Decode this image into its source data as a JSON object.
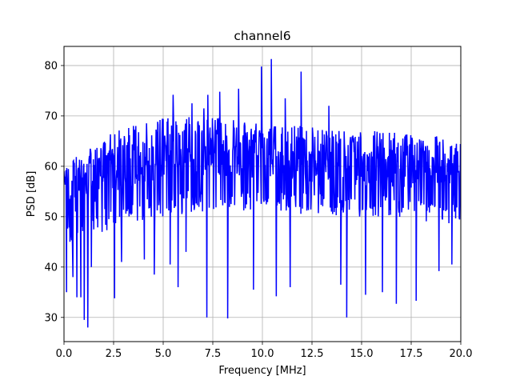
{
  "chart_data": {
    "type": "line",
    "title": "channel6",
    "xlabel": "Frequency [MHz]",
    "ylabel": "PSD [dB]",
    "xlim": [
      0,
      20
    ],
    "ylim": [
      25.2,
      83.8
    ],
    "xticks": [
      0,
      2.5,
      5,
      7.5,
      10,
      12.5,
      15,
      17.5,
      20
    ],
    "xtick_labels": [
      "0.0",
      "2.5",
      "5.0",
      "7.5",
      "10.0",
      "12.5",
      "15.0",
      "17.5",
      "20.0"
    ],
    "yticks": [
      30,
      40,
      50,
      60,
      70,
      80
    ],
    "ytick_labels": [
      "30",
      "40",
      "50",
      "60",
      "70",
      "80"
    ],
    "grid": true,
    "series": [
      {
        "color": "#0000ff",
        "points_per_x_step": 0.02,
        "envelope": {
          "x": [
            0,
            1,
            2,
            3,
            4,
            5,
            6,
            7,
            8,
            9,
            10,
            11,
            12,
            13,
            14,
            15,
            16,
            17,
            18,
            19,
            20
          ],
          "upper": [
            60,
            63,
            66,
            68,
            68.5,
            69.5,
            70,
            70,
            69.5,
            69,
            68.5,
            68,
            68,
            67.5,
            67,
            67,
            67,
            66.5,
            66,
            66,
            65
          ],
          "lower": [
            44,
            45,
            47,
            48,
            49,
            50,
            50.5,
            51,
            51,
            51,
            51,
            51,
            50.5,
            50.5,
            50,
            50,
            50,
            49.5,
            49,
            48.5,
            48
          ]
        },
        "peaks": [
          {
            "x": 0.13,
            "y": 35
          },
          {
            "x": 0.45,
            "y": 38
          },
          {
            "x": 0.65,
            "y": 34
          },
          {
            "x": 0.85,
            "y": 34
          },
          {
            "x": 1.02,
            "y": 29.5
          },
          {
            "x": 1.2,
            "y": 28
          },
          {
            "x": 1.38,
            "y": 40
          },
          {
            "x": 2.55,
            "y": 33.8
          },
          {
            "x": 2.9,
            "y": 41
          },
          {
            "x": 4.05,
            "y": 41.5
          },
          {
            "x": 4.55,
            "y": 38.5
          },
          {
            "x": 5.35,
            "y": 40.5
          },
          {
            "x": 5.75,
            "y": 36
          },
          {
            "x": 6.15,
            "y": 43
          },
          {
            "x": 7.2,
            "y": 30
          },
          {
            "x": 8.25,
            "y": 29.8
          },
          {
            "x": 9.55,
            "y": 35.5
          },
          {
            "x": 10.7,
            "y": 34.2
          },
          {
            "x": 11.4,
            "y": 36
          },
          {
            "x": 13.95,
            "y": 36.5
          },
          {
            "x": 14.25,
            "y": 30
          },
          {
            "x": 15.2,
            "y": 34.5
          },
          {
            "x": 16.05,
            "y": 35
          },
          {
            "x": 16.75,
            "y": 32.7
          },
          {
            "x": 17.75,
            "y": 33.3
          },
          {
            "x": 18.9,
            "y": 39.2
          },
          {
            "x": 19.55,
            "y": 40.5
          },
          {
            "x": 5.5,
            "y": 74.2
          },
          {
            "x": 6.45,
            "y": 72.5
          },
          {
            "x": 7.05,
            "y": 71.5
          },
          {
            "x": 7.25,
            "y": 74.2
          },
          {
            "x": 7.85,
            "y": 74.8
          },
          {
            "x": 8.8,
            "y": 75.4
          },
          {
            "x": 9.95,
            "y": 79.8
          },
          {
            "x": 10.45,
            "y": 81.3
          },
          {
            "x": 11.95,
            "y": 78.8
          },
          {
            "x": 11.15,
            "y": 73.5
          },
          {
            "x": 13.35,
            "y": 72
          }
        ]
      }
    ]
  }
}
